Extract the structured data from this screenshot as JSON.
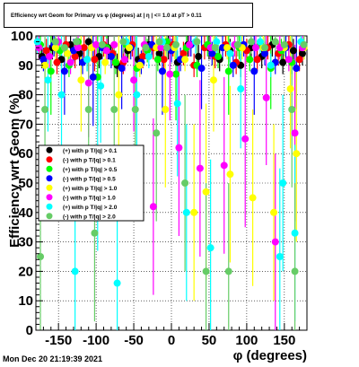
{
  "chart_data": {
    "type": "scatter",
    "title": "Efficiency wrt Geom for Primary vs φ (degrees) at | η | <= 1.0 at pT > 0.11",
    "xlabel": "φ (degrees)",
    "ylabel": "Efficiency wrt Geom (%)",
    "xlim": [
      -180,
      180
    ],
    "ylim": [
      0,
      100
    ],
    "xticks": [
      -150,
      -100,
      -50,
      0,
      50,
      100,
      150
    ],
    "yticks": [
      0,
      10,
      20,
      30,
      40,
      50,
      60,
      70,
      80,
      90,
      100
    ],
    "grid": true,
    "legend_position": "left-middle",
    "series": [
      {
        "name": "(+) with p T/|q| > 0.1",
        "color": "#000000",
        "points": [
          [
            -172,
            93
          ],
          [
            -158,
            96
          ],
          [
            -146,
            92
          ],
          [
            -134,
            97
          ],
          [
            -122,
            94
          ],
          [
            -110,
            98
          ],
          [
            -96,
            93
          ],
          [
            -84,
            96
          ],
          [
            -72,
            90
          ],
          [
            -58,
            95
          ],
          [
            -44,
            92
          ],
          [
            -30,
            97
          ],
          [
            -16,
            94
          ],
          [
            -4,
            96
          ],
          [
            8,
            91
          ],
          [
            22,
            97
          ],
          [
            36,
            93
          ],
          [
            50,
            96
          ],
          [
            64,
            92
          ],
          [
            78,
            95
          ],
          [
            92,
            90
          ],
          [
            106,
            96
          ],
          [
            120,
            93
          ],
          [
            134,
            97
          ],
          [
            148,
            91
          ],
          [
            162,
            95
          ],
          [
            174,
            94
          ]
        ]
      },
      {
        "name": "(-) with p T/|q| > 0.1",
        "color": "#ff0000",
        "points": [
          [
            -166,
            95
          ],
          [
            -152,
            91
          ],
          [
            -140,
            97
          ],
          [
            -128,
            93
          ],
          [
            -116,
            96
          ],
          [
            -102,
            92
          ],
          [
            -90,
            97
          ],
          [
            -78,
            94
          ],
          [
            -64,
            91
          ],
          [
            -52,
            97
          ],
          [
            -38,
            93
          ],
          [
            -24,
            96
          ],
          [
            -10,
            92
          ],
          [
            2,
            97
          ],
          [
            16,
            94
          ],
          [
            30,
            90
          ],
          [
            44,
            96
          ],
          [
            58,
            93
          ],
          [
            72,
            97
          ],
          [
            86,
            91
          ],
          [
            100,
            95
          ],
          [
            114,
            92
          ],
          [
            128,
            96
          ],
          [
            142,
            94
          ],
          [
            156,
            97
          ],
          [
            170,
            92
          ]
        ]
      },
      {
        "name": "(+) with p T/|q| > 0.5",
        "color": "#00ff00",
        "points": [
          [
            -174,
            97
          ],
          [
            -160,
            88
          ],
          [
            -148,
            95
          ],
          [
            -136,
            90
          ],
          [
            -124,
            98
          ],
          [
            -112,
            92
          ],
          [
            -98,
            86
          ],
          [
            -86,
            96
          ],
          [
            -74,
            91
          ],
          [
            -60,
            97
          ],
          [
            -46,
            89
          ],
          [
            -32,
            95
          ],
          [
            -18,
            92
          ],
          [
            -6,
            98
          ],
          [
            6,
            87
          ],
          [
            20,
            96
          ],
          [
            34,
            90
          ],
          [
            48,
            97
          ],
          [
            62,
            93
          ],
          [
            76,
            88
          ],
          [
            90,
            96
          ],
          [
            104,
            92
          ],
          [
            118,
            97
          ],
          [
            132,
            89
          ],
          [
            146,
            95
          ],
          [
            160,
            91
          ],
          [
            176,
            96
          ]
        ]
      },
      {
        "name": "(-) with p T/|q| > 0.5",
        "color": "#0000ff",
        "points": [
          [
            -170,
            92
          ],
          [
            -156,
            97
          ],
          [
            -142,
            88
          ],
          [
            -130,
            95
          ],
          [
            -118,
            91
          ],
          [
            -104,
            86
          ],
          [
            -92,
            96
          ],
          [
            -80,
            93
          ],
          [
            -66,
            89
          ],
          [
            -54,
            96
          ],
          [
            -40,
            91
          ],
          [
            -26,
            97
          ],
          [
            -12,
            88
          ],
          [
            0,
            95
          ],
          [
            12,
            92
          ],
          [
            26,
            97
          ],
          [
            40,
            89
          ],
          [
            54,
            94
          ],
          [
            68,
            96
          ],
          [
            82,
            90
          ],
          [
            96,
            97
          ],
          [
            110,
            88
          ],
          [
            124,
            94
          ],
          [
            138,
            91
          ],
          [
            152,
            96
          ],
          [
            166,
            89
          ]
        ]
      },
      {
        "name": "(+) with p T/|q| > 1.0",
        "color": "#ffff00",
        "points": [
          [
            -168,
            90
          ],
          [
            -154,
            96
          ],
          [
            -138,
            94
          ],
          [
            -120,
            85
          ],
          [
            -106,
            96
          ],
          [
            -88,
            91
          ],
          [
            -70,
            80
          ],
          [
            -56,
            96
          ],
          [
            -42,
            90
          ],
          [
            -20,
            96
          ],
          [
            -8,
            75
          ],
          [
            4,
            96
          ],
          [
            18,
            92
          ],
          [
            30,
            40
          ],
          [
            46,
            47
          ],
          [
            56,
            85
          ],
          [
            74,
            96
          ],
          [
            78,
            53
          ],
          [
            94,
            96
          ],
          [
            108,
            45
          ],
          [
            122,
            96
          ],
          [
            136,
            40
          ],
          [
            150,
            96
          ],
          [
            158,
            82
          ],
          [
            166,
            60
          ],
          [
            176,
            96
          ]
        ]
      },
      {
        "name": "(-) with p T/|q| > 1.0",
        "color": "#ff00ff",
        "points": [
          [
            -176,
            96
          ],
          [
            -162,
            93
          ],
          [
            -150,
            98
          ],
          [
            -134,
            91
          ],
          [
            -124,
            96
          ],
          [
            -110,
            84
          ],
          [
            -100,
            97
          ],
          [
            -86,
            95
          ],
          [
            -76,
            97
          ],
          [
            -62,
            92
          ],
          [
            -50,
            85
          ],
          [
            -36,
            97
          ],
          [
            -24,
            42
          ],
          [
            -14,
            96
          ],
          [
            -2,
            87
          ],
          [
            10,
            62
          ],
          [
            24,
            97
          ],
          [
            38,
            55
          ],
          [
            52,
            96
          ],
          [
            70,
            56
          ],
          [
            84,
            97
          ],
          [
            98,
            65
          ],
          [
            112,
            96
          ],
          [
            126,
            79
          ],
          [
            138,
            30
          ],
          [
            144,
            96
          ],
          [
            156,
            92
          ],
          [
            164,
            67
          ],
          [
            174,
            96
          ]
        ]
      },
      {
        "name": "(+) with p T/|q| > 2.0",
        "color": "#00ffff",
        "points": [
          [
            -178,
            98
          ],
          [
            -164,
            85
          ],
          [
            -146,
            80
          ],
          [
            -128,
            20
          ],
          [
            -112,
            92
          ],
          [
            -98,
            57
          ],
          [
            -94,
            83
          ],
          [
            -72,
            16
          ],
          [
            -60,
            98
          ],
          [
            -46,
            80
          ],
          [
            -30,
            93
          ],
          [
            -12,
            98
          ],
          [
            8,
            77
          ],
          [
            20,
            40
          ],
          [
            32,
            98
          ],
          [
            52,
            28
          ],
          [
            60,
            98
          ],
          [
            78,
            94
          ],
          [
            92,
            82
          ],
          [
            118,
            98
          ],
          [
            132,
            90
          ],
          [
            144,
            25
          ],
          [
            148,
            50
          ],
          [
            164,
            33
          ],
          [
            172,
            98
          ]
        ]
      },
      {
        "name": "(-) with p T/|q| > 2.0",
        "color": "#66cc66",
        "points": [
          [
            -174,
            25
          ],
          [
            -168,
            75
          ],
          [
            -154,
            98
          ],
          [
            -142,
            96
          ],
          [
            -126,
            98
          ],
          [
            -110,
            75
          ],
          [
            -102,
            33
          ],
          [
            -92,
            97
          ],
          [
            -76,
            75
          ],
          [
            -64,
            98
          ],
          [
            -48,
            75
          ],
          [
            -34,
            96
          ],
          [
            -20,
            67
          ],
          [
            -16,
            98
          ],
          [
            -6,
            96
          ],
          [
            6,
            97
          ],
          [
            18,
            50
          ],
          [
            34,
            98
          ],
          [
            46,
            20
          ],
          [
            58,
            96
          ],
          [
            76,
            20
          ],
          [
            88,
            97
          ],
          [
            106,
            98
          ],
          [
            124,
            96
          ],
          [
            138,
            98
          ],
          [
            150,
            97
          ],
          [
            160,
            75
          ],
          [
            164,
            20
          ],
          [
            176,
            97
          ]
        ]
      }
    ]
  },
  "footer": {
    "timestamp": "Mon Dec 20 21:19:39 2021"
  }
}
